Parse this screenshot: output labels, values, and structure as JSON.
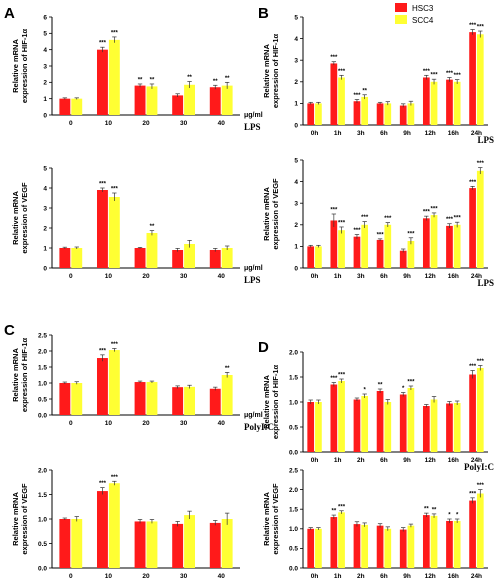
{
  "colors": {
    "HSC3": "#ff1a1a",
    "SCC4": "#ffff33"
  },
  "legend": [
    {
      "name": "HSC3",
      "color": "#ff1a1a"
    },
    {
      "name": "SCC4",
      "color": "#ffff33"
    }
  ],
  "chart_data": [
    {
      "id": "A1",
      "letter": "A",
      "type": "bar",
      "ylabel": [
        "Relative mRNA",
        "expression of HIF-1α"
      ],
      "unit": "μg/ml",
      "agent": "LPS",
      "categories": [
        "0",
        "10",
        "20",
        "30",
        "40"
      ],
      "ylim": [
        0,
        6
      ],
      "yticks": [
        0,
        1,
        2,
        3,
        4,
        5,
        6
      ],
      "series": [
        {
          "name": "HSC3",
          "values": [
            1.0,
            4.0,
            1.8,
            1.2,
            1.7
          ],
          "errors": [
            0.05,
            0.15,
            0.1,
            0.1,
            0.12
          ],
          "stars": [
            "",
            "***",
            "**",
            "",
            "**"
          ]
        },
        {
          "name": "SCC4",
          "values": [
            1.0,
            4.6,
            1.75,
            1.85,
            1.8
          ],
          "errors": [
            0.05,
            0.18,
            0.15,
            0.2,
            0.2
          ],
          "stars": [
            "",
            "***",
            "**",
            "**",
            "**"
          ]
        }
      ]
    },
    {
      "id": "A2",
      "type": "bar",
      "ylabel": [
        "Relative mRNA",
        "expression of VEGF"
      ],
      "unit": "μg/ml",
      "agent": "LPS",
      "categories": [
        "0",
        "10",
        "20",
        "30",
        "40"
      ],
      "ylim": [
        0,
        5
      ],
      "yticks": [
        0,
        1,
        2,
        3,
        4,
        5
      ],
      "series": [
        {
          "name": "HSC3",
          "values": [
            1.0,
            3.9,
            1.0,
            0.9,
            0.9
          ],
          "errors": [
            0.04,
            0.1,
            0.03,
            0.08,
            0.08
          ],
          "stars": [
            "",
            "***",
            "",
            "",
            ""
          ]
        },
        {
          "name": "SCC4",
          "values": [
            1.0,
            3.55,
            1.75,
            1.2,
            1.0
          ],
          "errors": [
            0.05,
            0.2,
            0.12,
            0.18,
            0.1
          ],
          "stars": [
            "",
            "***",
            "**",
            "",
            ""
          ]
        }
      ]
    },
    {
      "id": "B1",
      "letter": "B",
      "type": "bar",
      "ylabel": [
        "Relative mRNA",
        "expression of HIF-1α"
      ],
      "agent": "LPS",
      "categories": [
        "0h",
        "1h",
        "3h",
        "6h",
        "9h",
        "12h",
        "16h",
        "24h"
      ],
      "ylim": [
        0,
        5
      ],
      "yticks": [
        0,
        1,
        2,
        3,
        4,
        5
      ],
      "series": [
        {
          "name": "HSC3",
          "values": [
            1.0,
            2.85,
            1.1,
            1.0,
            0.9,
            2.2,
            2.1,
            4.3
          ],
          "errors": [
            0.05,
            0.08,
            0.08,
            0.05,
            0.08,
            0.1,
            0.1,
            0.12
          ],
          "stars": [
            "",
            "***",
            "***",
            "",
            "",
            "***",
            "***",
            "***"
          ]
        },
        {
          "name": "SCC4",
          "values": [
            1.0,
            2.2,
            1.3,
            1.0,
            1.0,
            2.0,
            2.0,
            4.2
          ],
          "errors": [
            0.05,
            0.1,
            0.1,
            0.08,
            0.1,
            0.12,
            0.1,
            0.15
          ],
          "stars": [
            "",
            "***",
            "**",
            "",
            "",
            "***",
            "***",
            "***"
          ]
        }
      ]
    },
    {
      "id": "B2",
      "type": "bar",
      "ylabel": [
        "Relative mRNA",
        "expression of VEGF"
      ],
      "agent": "LPS",
      "categories": [
        "0h",
        "1h",
        "3h",
        "6h",
        "9h",
        "12h",
        "16h",
        "24h"
      ],
      "ylim": [
        0,
        5
      ],
      "yticks": [
        0,
        1,
        2,
        3,
        4,
        5
      ],
      "series": [
        {
          "name": "HSC3",
          "values": [
            1.0,
            2.2,
            1.45,
            1.3,
            0.8,
            2.3,
            1.95,
            3.7
          ],
          "errors": [
            0.05,
            0.3,
            0.1,
            0.05,
            0.08,
            0.1,
            0.1,
            0.08
          ],
          "stars": [
            "",
            "***",
            "***",
            "***",
            "",
            "***",
            "***",
            "***"
          ]
        },
        {
          "name": "SCC4",
          "values": [
            1.0,
            1.75,
            2.0,
            2.0,
            1.25,
            2.45,
            2.0,
            4.5
          ],
          "errors": [
            0.05,
            0.15,
            0.15,
            0.1,
            0.15,
            0.1,
            0.12,
            0.15
          ],
          "stars": [
            "",
            "***",
            "***",
            "***",
            "***",
            "***",
            "***",
            "***"
          ]
        }
      ]
    },
    {
      "id": "C1",
      "letter": "C",
      "type": "bar",
      "ylabel": [
        "Relative mRNA",
        "expression of HIF-1α"
      ],
      "unit": "μg/ml",
      "agent": "PolyI:C",
      "categories": [
        "0",
        "10",
        "20",
        "30",
        "40"
      ],
      "ylim": [
        0,
        2.5
      ],
      "yticks": [
        0.0,
        0.5,
        1.0,
        1.5,
        2.0,
        2.5
      ],
      "series": [
        {
          "name": "HSC3",
          "values": [
            1.0,
            1.78,
            1.03,
            0.87,
            0.82
          ],
          "errors": [
            0.03,
            0.1,
            0.03,
            0.04,
            0.05
          ],
          "stars": [
            "",
            "***",
            "",
            "",
            ""
          ]
        },
        {
          "name": "SCC4",
          "values": [
            1.0,
            2.03,
            1.03,
            0.88,
            1.25
          ],
          "errors": [
            0.04,
            0.05,
            0.03,
            0.05,
            0.08
          ],
          "stars": [
            "",
            "***",
            "",
            "",
            "**"
          ]
        }
      ]
    },
    {
      "id": "C2",
      "type": "bar",
      "ylabel": [
        "Relative mRNA",
        "expression of VEGF"
      ],
      "agent": "PolyI:C",
      "categories": [
        "0",
        "10",
        "20",
        "30",
        "40"
      ],
      "ylim": [
        0,
        2.0
      ],
      "yticks": [
        0.0,
        0.5,
        1.0,
        1.5,
        2.0
      ],
      "series": [
        {
          "name": "HSC3",
          "values": [
            1.0,
            1.57,
            0.95,
            0.9,
            0.92
          ],
          "errors": [
            0.02,
            0.07,
            0.04,
            0.05,
            0.05
          ],
          "stars": [
            "",
            "***",
            "",
            "",
            ""
          ]
        },
        {
          "name": "SCC4",
          "values": [
            1.0,
            1.73,
            0.95,
            1.08,
            1.0
          ],
          "errors": [
            0.05,
            0.04,
            0.04,
            0.08,
            0.12
          ],
          "stars": [
            "",
            "***",
            "",
            "",
            ""
          ]
        }
      ]
    },
    {
      "id": "D1",
      "letter": "D",
      "type": "bar",
      "ylabel": [
        "Relative mRNA",
        "expression of HIF-1α"
      ],
      "agent": "PolyI:C",
      "categories": [
        "0h",
        "1h",
        "2h",
        "6h",
        "9h",
        "12h",
        "16h",
        "24h"
      ],
      "ylim": [
        0,
        2.0
      ],
      "yticks": [
        0.0,
        0.5,
        1.0,
        1.5,
        2.0
      ],
      "series": [
        {
          "name": "HSC3",
          "values": [
            1.0,
            1.35,
            1.05,
            1.22,
            1.15,
            0.92,
            0.97,
            1.55
          ],
          "errors": [
            0.04,
            0.04,
            0.03,
            0.04,
            0.04,
            0.03,
            0.04,
            0.08
          ],
          "stars": [
            "",
            "***",
            "",
            "**",
            "*",
            "",
            "",
            "***"
          ]
        },
        {
          "name": "SCC4",
          "values": [
            1.0,
            1.42,
            1.12,
            1.0,
            1.28,
            1.05,
            0.98,
            1.68
          ],
          "errors": [
            0.04,
            0.04,
            0.04,
            0.05,
            0.04,
            0.06,
            0.04,
            0.05
          ],
          "stars": [
            "",
            "***",
            "*",
            "",
            "***",
            "",
            "",
            "***"
          ]
        }
      ]
    },
    {
      "id": "D2",
      "type": "bar",
      "ylabel": [
        "Relative mRNA",
        "expression of VEGF"
      ],
      "agent": "PolyI:C",
      "categories": [
        "0h",
        "1h",
        "2h",
        "6h",
        "9h",
        "12h",
        "16h",
        "24h"
      ],
      "ylim": [
        0,
        2.5
      ],
      "yticks": [
        0.0,
        0.5,
        1.0,
        1.5,
        2.0,
        2.5
      ],
      "series": [
        {
          "name": "HSC3",
          "values": [
            1.0,
            1.3,
            1.12,
            1.08,
            0.98,
            1.35,
            1.2,
            1.72
          ],
          "errors": [
            0.03,
            0.05,
            0.06,
            0.05,
            0.05,
            0.05,
            0.05,
            0.07
          ],
          "stars": [
            "",
            "**",
            "",
            "",
            "",
            "**",
            "*",
            "***"
          ]
        },
        {
          "name": "SCC4",
          "values": [
            1.0,
            1.42,
            1.1,
            1.0,
            1.08,
            1.33,
            1.2,
            1.9
          ],
          "errors": [
            0.03,
            0.04,
            0.05,
            0.05,
            0.04,
            0.05,
            0.05,
            0.1
          ],
          "stars": [
            "",
            "***",
            "",
            "",
            "",
            "**",
            "*",
            "***"
          ]
        }
      ]
    }
  ]
}
